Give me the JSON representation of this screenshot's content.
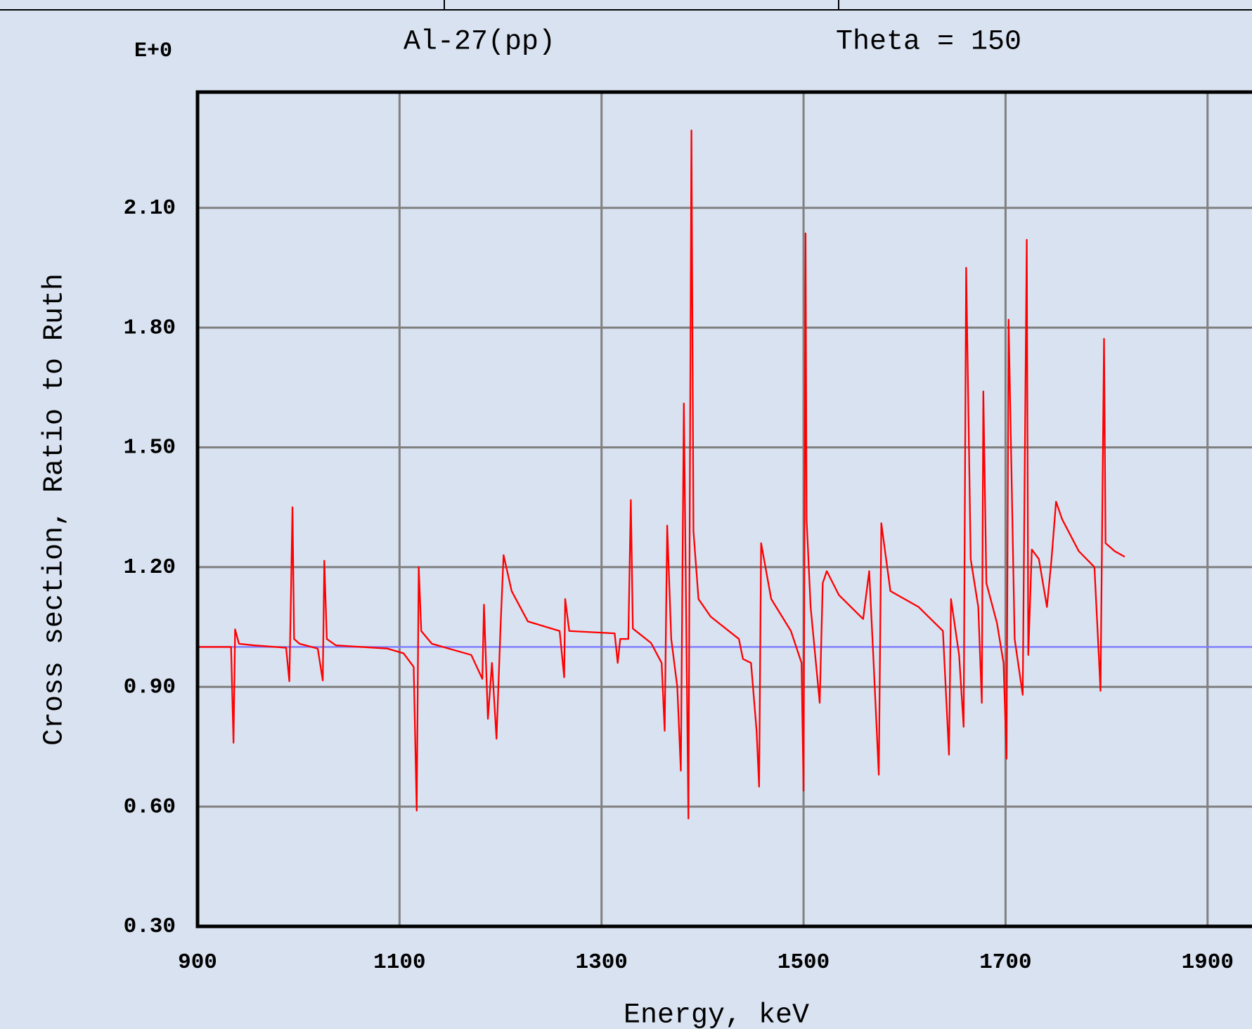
{
  "chart_data": {
    "type": "line",
    "title": "Al-27(pp)",
    "subtitle": "Theta = 150",
    "exponent_label": "E+0",
    "x_label": "Energy, keV",
    "y_label": "Cross section, Ratio to Ruth",
    "xlim": [
      900,
      1944
    ],
    "ylim": [
      0.3,
      2.39
    ],
    "xticks": [
      900,
      1100,
      1300,
      1500,
      1700,
      1900
    ],
    "yticks": [
      {
        "value": 0.3,
        "label": "0.30"
      },
      {
        "value": 0.6,
        "label": "0.60"
      },
      {
        "value": 0.9,
        "label": "0.90"
      },
      {
        "value": 1.2,
        "label": "1.20"
      },
      {
        "value": 1.5,
        "label": "1.50"
      },
      {
        "value": 1.8,
        "label": "1.80"
      },
      {
        "value": 2.1,
        "label": "2.10"
      }
    ],
    "grid": true,
    "series": [
      {
        "color": "#ff0000",
        "x": [
          900,
          933.2,
          935.6,
          937.2,
          941,
          956,
          987.7,
          990.9,
          992.5,
          994,
          995.6,
          1001,
          1019,
          1024,
          1025.5,
          1028,
          1037,
          1088,
          1104,
          1114,
          1117,
          1119,
          1121.5,
          1132,
          1171,
          1182,
          1183.6,
          1187.5,
          1191.5,
          1196,
          1200,
          1203,
          1211,
          1227,
          1258.5,
          1263,
          1264,
          1268,
          1313,
          1316,
          1318.5,
          1326.5,
          1329,
          1331,
          1349,
          1359.5,
          1362.5,
          1365,
          1369,
          1375,
          1378.5,
          1381.5,
          1384.5,
          1386,
          1387.5,
          1389,
          1391,
          1396,
          1408,
          1436,
          1440,
          1448,
          1453.5,
          1456,
          1458,
          1468,
          1487.5,
          1498,
          1500,
          1502,
          1503,
          1507,
          1513,
          1516,
          1519,
          1523,
          1535,
          1559,
          1565,
          1569,
          1574.5,
          1577,
          1586,
          1614,
          1638,
          1644,
          1646,
          1654,
          1658.5,
          1661,
          1665.5,
          1673,
          1676.5,
          1678,
          1681,
          1691.5,
          1698,
          1701,
          1703,
          1706,
          1709,
          1717,
          1721,
          1722.5,
          1726,
          1733,
          1741,
          1745.5,
          1750,
          1756,
          1772.5,
          1788,
          1792.5,
          1794,
          1796,
          1797.5,
          1799,
          1808,
          1818
        ],
        "values": [
          1.0,
          1.0,
          0.76,
          1.044,
          1.008,
          1.004,
          0.998,
          0.914,
          1.13,
          1.35,
          1.02,
          1.008,
          0.996,
          0.916,
          1.216,
          1.02,
          1.004,
          0.996,
          0.984,
          0.95,
          0.59,
          1.2,
          1.04,
          1.008,
          0.98,
          0.92,
          1.106,
          0.82,
          0.96,
          0.77,
          1.05,
          1.23,
          1.14,
          1.064,
          1.04,
          0.924,
          1.12,
          1.04,
          1.034,
          0.96,
          1.02,
          1.02,
          1.368,
          1.046,
          1.01,
          0.96,
          0.79,
          1.304,
          1.02,
          0.9,
          0.69,
          1.61,
          0.91,
          0.57,
          1.43,
          2.294,
          1.29,
          1.12,
          1.076,
          1.02,
          0.97,
          0.96,
          0.79,
          0.65,
          1.26,
          1.12,
          1.04,
          0.96,
          0.64,
          2.036,
          1.32,
          1.1,
          0.94,
          0.86,
          1.16,
          1.19,
          1.13,
          1.07,
          1.19,
          0.98,
          0.68,
          1.31,
          1.14,
          1.1,
          1.04,
          0.73,
          1.12,
          0.98,
          0.8,
          1.95,
          1.22,
          1.1,
          0.86,
          1.64,
          1.16,
          1.06,
          0.96,
          0.72,
          1.82,
          1.42,
          1.02,
          0.88,
          2.02,
          0.98,
          1.244,
          1.22,
          1.1,
          1.22,
          1.364,
          1.32,
          1.24,
          1.2,
          0.97,
          0.89,
          1.39,
          1.772,
          1.26,
          1.24,
          1.226
        ]
      },
      {
        "color": "#7b7bff",
        "x": [
          900,
          1944
        ],
        "values": [
          1.0,
          1.0
        ]
      }
    ]
  }
}
